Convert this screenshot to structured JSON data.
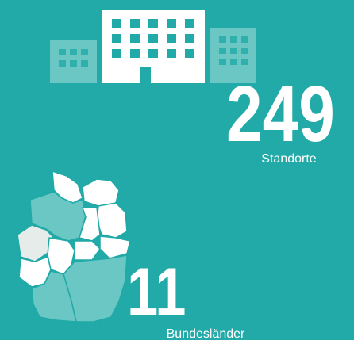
{
  "stats": [
    {
      "value": 249,
      "label": "Standorte"
    },
    {
      "value": 11,
      "label": "Bundesländer"
    }
  ]
}
